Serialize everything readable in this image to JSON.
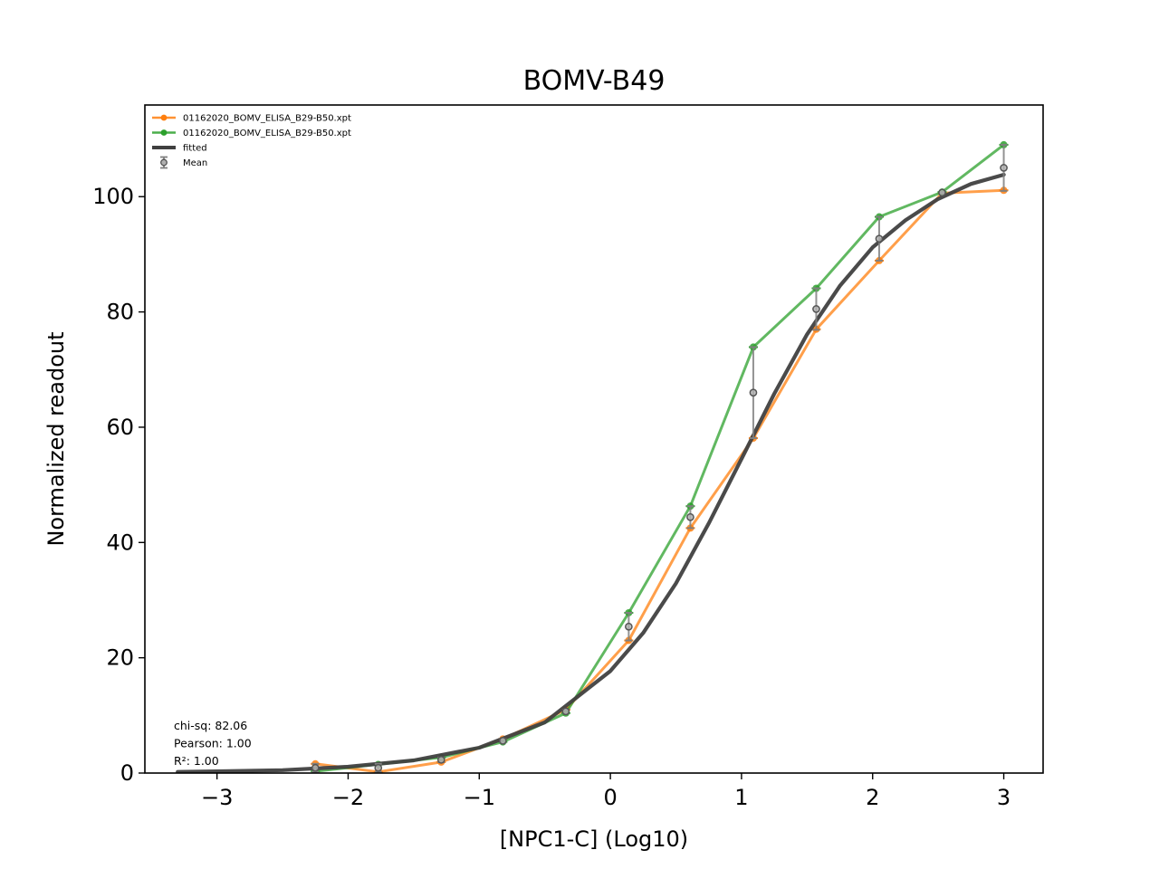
{
  "chart_data": {
    "type": "line",
    "title": "BOMV-B49",
    "xlabel": "[NPC1-C] (Log10)",
    "ylabel": "Normalized readout",
    "xlim": [
      -3.55,
      3.3
    ],
    "ylim": [
      0,
      115.9
    ],
    "xticks": [
      -3,
      -2,
      -1,
      0,
      1,
      2,
      3
    ],
    "xtick_labels": [
      "−3",
      "−2",
      "−1",
      "0",
      "1",
      "2",
      "3"
    ],
    "yticks": [
      0,
      20,
      40,
      60,
      80,
      100
    ],
    "ytick_labels": [
      "0",
      "20",
      "40",
      "60",
      "80",
      "100"
    ],
    "grid": false,
    "legend_position": "top-left",
    "series": [
      {
        "name": "01162020_BOMV_ELISA_B29-B50.xpt",
        "kind": "line-marker",
        "color": "#ff7f0e",
        "x": [
          -2.25,
          -1.77,
          -1.29,
          -0.82,
          -0.34,
          0.14,
          0.61,
          1.09,
          1.57,
          2.05,
          2.53,
          3.0
        ],
        "y": [
          1.6,
          0.2,
          1.9,
          5.9,
          11.0,
          23.0,
          42.5,
          58.1,
          77.0,
          88.9,
          100.6,
          101.1
        ]
      },
      {
        "name": "01162020_BOMV_ELISA_B29-B50.xpt",
        "kind": "line-marker",
        "color": "#2ca02c",
        "x": [
          -2.25,
          -1.77,
          -1.29,
          -0.82,
          -0.34,
          0.14,
          0.61,
          1.09,
          1.57,
          2.05,
          2.53,
          3.0
        ],
        "y": [
          0.3,
          1.5,
          2.7,
          5.4,
          10.4,
          27.8,
          46.3,
          73.9,
          84.1,
          96.5,
          100.8,
          109.0
        ]
      },
      {
        "name": "fitted",
        "kind": "curve",
        "color": "#404040",
        "x": [
          -3.3,
          -3.0,
          -2.5,
          -2.0,
          -1.5,
          -1.0,
          -0.5,
          0.0,
          0.25,
          0.5,
          0.75,
          1.0,
          1.25,
          1.5,
          1.75,
          2.0,
          2.25,
          2.5,
          2.75,
          3.0
        ],
        "y": [
          0.2,
          0.3,
          0.5,
          1.1,
          2.2,
          4.4,
          8.8,
          17.7,
          24.3,
          32.9,
          43.3,
          54.5,
          65.8,
          76.1,
          84.5,
          91.2,
          95.9,
          99.6,
          102.2,
          103.8
        ]
      },
      {
        "name": "Mean",
        "kind": "errorbar",
        "color": "#808080",
        "x": [
          -2.25,
          -1.77,
          -1.29,
          -0.82,
          -0.34,
          0.14,
          0.61,
          1.09,
          1.57,
          2.05,
          2.53,
          3.0
        ],
        "y": [
          0.9,
          0.9,
          2.3,
          5.6,
          10.7,
          25.4,
          44.4,
          66.0,
          80.5,
          92.7,
          100.7,
          105.0
        ],
        "err": [
          0.7,
          0.7,
          0.4,
          0.3,
          0.3,
          2.4,
          1.9,
          7.9,
          3.6,
          3.8,
          0.1,
          4.0
        ]
      }
    ],
    "annotations": [
      "chi-sq: 82.06",
      "Pearson: 1.00",
      "R²: 1.00"
    ]
  }
}
